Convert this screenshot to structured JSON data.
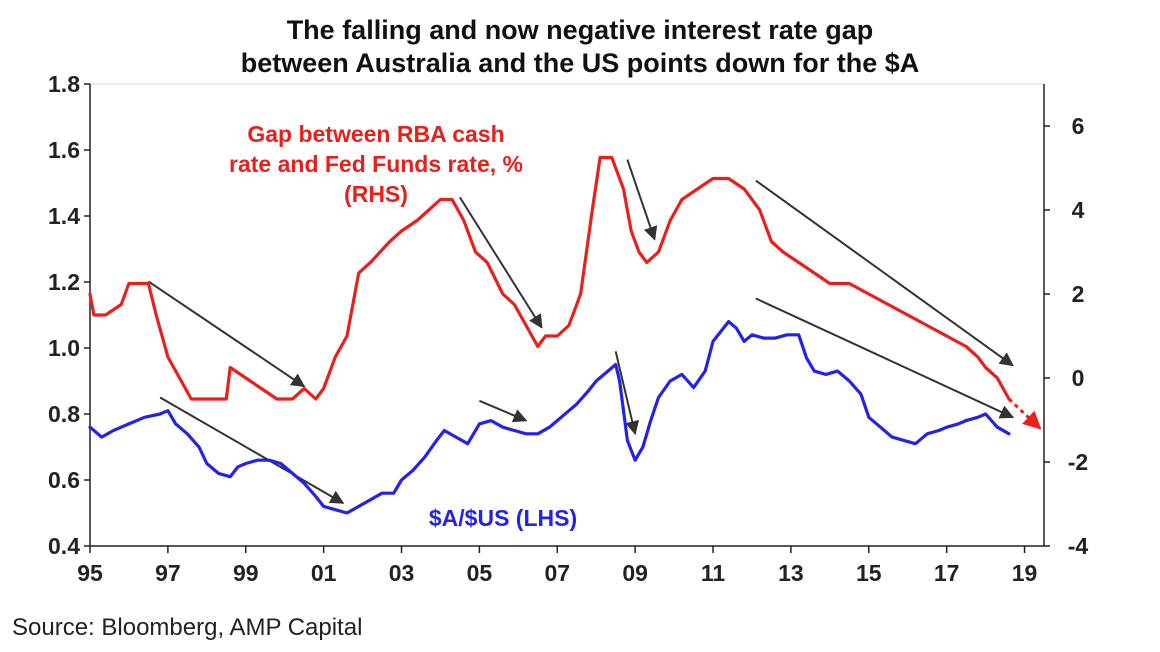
{
  "chart_data": {
    "type": "line",
    "title_lines": [
      "The falling and now negative interest rate gap",
      "between Australia and the US points down for the $A"
    ],
    "source": "Source: Bloomberg, AMP Capital",
    "x_tick_labels": [
      "95",
      "97",
      "99",
      "01",
      "03",
      "05",
      "07",
      "09",
      "11",
      "13",
      "15",
      "17",
      "19"
    ],
    "x_tick_years": [
      1995,
      1997,
      1999,
      2001,
      2003,
      2005,
      2007,
      2009,
      2011,
      2013,
      2015,
      2017,
      2019
    ],
    "xlim": [
      1995,
      2019.5
    ],
    "ylim_left": [
      0.4,
      1.8
    ],
    "ylim_right": [
      -4,
      7
    ],
    "y_left_ticks": [
      "0.4",
      "0.6",
      "0.8",
      "1.0",
      "1.2",
      "1.4",
      "1.6",
      "1.8"
    ],
    "y_right_ticks": [
      "-4",
      "-2",
      "0",
      "2",
      "4",
      "6"
    ],
    "colors": {
      "gap": "#e8201c",
      "aud": "#2323e6",
      "trend": "#333333"
    },
    "series": [
      {
        "name": "Gap between RBA cash rate and Fed Funds rate, % (RHS)",
        "label_lines": [
          "Gap between RBA cash",
          "rate and Fed Funds rate, %",
          "(RHS)"
        ],
        "axis": "right",
        "x": [
          1995.0,
          1995.1,
          1995.4,
          1995.8,
          1996.0,
          1996.5,
          1996.7,
          1997.0,
          1997.3,
          1997.6,
          1997.8,
          1998.5,
          1998.6,
          1999.0,
          1999.4,
          1999.8,
          2000.2,
          2000.5,
          2000.8,
          2001.0,
          2001.3,
          2001.6,
          2001.9,
          2002.2,
          2002.7,
          2003.0,
          2003.4,
          2003.7,
          2004.0,
          2004.3,
          2004.6,
          2004.9,
          2005.2,
          2005.6,
          2005.9,
          2006.2,
          2006.5,
          2006.7,
          2007.0,
          2007.3,
          2007.6,
          2007.9,
          2008.1,
          2008.4,
          2008.7,
          2008.9,
          2009.1,
          2009.3,
          2009.6,
          2009.9,
          2010.2,
          2010.6,
          2011.0,
          2011.4,
          2011.8,
          2012.0,
          2012.2,
          2012.5,
          2012.8,
          2013.2,
          2013.6,
          2014.0,
          2014.5,
          2015.0,
          2015.5,
          2016.0,
          2016.5,
          2017.0,
          2017.5,
          2017.8,
          2018.0,
          2018.3,
          2018.6
        ],
        "y": [
          2.0,
          1.5,
          1.5,
          1.75,
          2.25,
          2.25,
          1.5,
          0.5,
          0.0,
          -0.5,
          -0.5,
          -0.5,
          0.25,
          0.0,
          -0.25,
          -0.5,
          -0.5,
          -0.25,
          -0.5,
          -0.25,
          0.5,
          1.0,
          2.5,
          2.75,
          3.25,
          3.5,
          3.75,
          4.0,
          4.25,
          4.25,
          3.75,
          3.0,
          2.75,
          2.0,
          1.75,
          1.25,
          0.75,
          1.0,
          1.0,
          1.25,
          2.0,
          4.0,
          5.25,
          5.25,
          4.5,
          3.5,
          3.0,
          2.75,
          3.0,
          3.75,
          4.25,
          4.5,
          4.75,
          4.75,
          4.5,
          4.25,
          4.0,
          3.25,
          3.0,
          2.75,
          2.5,
          2.25,
          2.25,
          2.0,
          1.75,
          1.5,
          1.25,
          1.0,
          0.75,
          0.5,
          0.25,
          0.0,
          -0.5
        ]
      },
      {
        "name": "$A/$US (LHS)",
        "label": "$A/$US (LHS)",
        "axis": "left",
        "x": [
          1995.0,
          1995.3,
          1995.6,
          1996.0,
          1996.4,
          1996.8,
          1997.0,
          1997.2,
          1997.5,
          1997.8,
          1998.0,
          1998.3,
          1998.6,
          1998.8,
          1999.0,
          1999.3,
          1999.6,
          1999.9,
          2000.2,
          2000.5,
          2000.8,
          2001.0,
          2001.3,
          2001.6,
          2001.9,
          2002.2,
          2002.5,
          2002.8,
          2003.0,
          2003.3,
          2003.6,
          2003.9,
          2004.1,
          2004.4,
          2004.7,
          2005.0,
          2005.3,
          2005.6,
          2005.9,
          2006.2,
          2006.5,
          2006.8,
          2007.0,
          2007.3,
          2007.5,
          2007.8,
          2008.0,
          2008.3,
          2008.5,
          2008.6,
          2008.8,
          2009.0,
          2009.2,
          2009.4,
          2009.6,
          2009.9,
          2010.2,
          2010.5,
          2010.8,
          2011.0,
          2011.2,
          2011.4,
          2011.6,
          2011.8,
          2012.0,
          2012.3,
          2012.6,
          2012.9,
          2013.2,
          2013.4,
          2013.6,
          2013.9,
          2014.2,
          2014.5,
          2014.8,
          2015.0,
          2015.3,
          2015.6,
          2015.9,
          2016.2,
          2016.5,
          2016.8,
          2017.0,
          2017.3,
          2017.5,
          2017.8,
          2018.0,
          2018.3,
          2018.6
        ],
        "y": [
          0.76,
          0.73,
          0.75,
          0.77,
          0.79,
          0.8,
          0.81,
          0.77,
          0.74,
          0.7,
          0.65,
          0.62,
          0.61,
          0.64,
          0.65,
          0.66,
          0.66,
          0.65,
          0.62,
          0.59,
          0.55,
          0.52,
          0.51,
          0.5,
          0.52,
          0.54,
          0.56,
          0.56,
          0.6,
          0.63,
          0.67,
          0.72,
          0.75,
          0.73,
          0.71,
          0.77,
          0.78,
          0.76,
          0.75,
          0.74,
          0.74,
          0.76,
          0.78,
          0.81,
          0.83,
          0.87,
          0.9,
          0.93,
          0.95,
          0.9,
          0.72,
          0.66,
          0.7,
          0.78,
          0.85,
          0.9,
          0.92,
          0.88,
          0.93,
          1.02,
          1.05,
          1.08,
          1.06,
          1.02,
          1.04,
          1.03,
          1.03,
          1.04,
          1.04,
          0.97,
          0.93,
          0.92,
          0.93,
          0.9,
          0.86,
          0.79,
          0.76,
          0.73,
          0.72,
          0.71,
          0.74,
          0.75,
          0.76,
          0.77,
          0.78,
          0.79,
          0.8,
          0.76,
          0.74
        ]
      }
    ],
    "trend_arrows": [
      {
        "axis": "right",
        "x": [
          1996.5,
          2000.5
        ],
        "y": [
          2.3,
          -0.2
        ]
      },
      {
        "axis": "right",
        "x": [
          2004.5,
          2006.6
        ],
        "y": [
          4.3,
          1.2
        ]
      },
      {
        "axis": "right",
        "x": [
          2008.8,
          2009.5
        ],
        "y": [
          5.2,
          3.3
        ]
      },
      {
        "axis": "right",
        "x": [
          2012.1,
          2018.7
        ],
        "y": [
          4.7,
          0.3
        ]
      },
      {
        "axis": "left",
        "x": [
          1996.8,
          2001.5
        ],
        "y": [
          0.85,
          0.53
        ]
      },
      {
        "axis": "left",
        "x": [
          2005.0,
          2006.2
        ],
        "y": [
          0.84,
          0.78
        ]
      },
      {
        "axis": "left",
        "x": [
          2008.5,
          2009.0
        ],
        "y": [
          0.99,
          0.74
        ]
      },
      {
        "axis": "left",
        "x": [
          2012.1,
          2018.7
        ],
        "y": [
          1.15,
          0.79
        ]
      }
    ],
    "projection": {
      "axis": "right",
      "x": [
        2018.6,
        2019.4
      ],
      "y": [
        -0.5,
        -1.2
      ]
    },
    "grid": false,
    "legend": "none (inline labels)"
  }
}
